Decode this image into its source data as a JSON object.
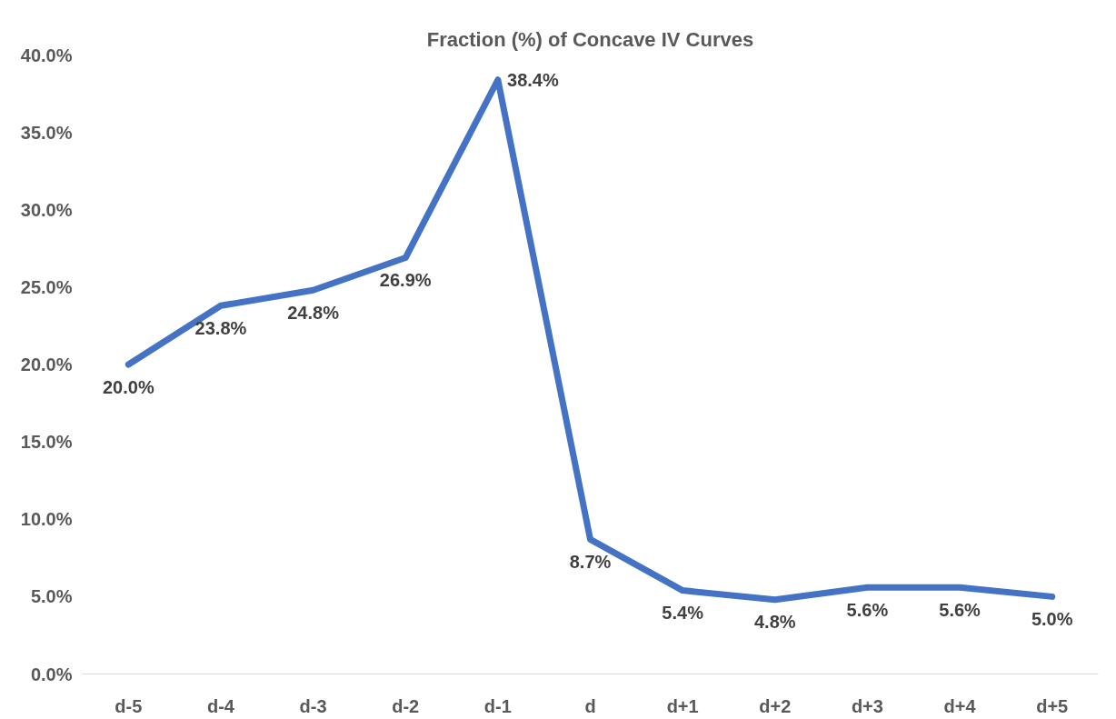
{
  "chart_data": {
    "type": "line",
    "title": "Fraction (%) of Concave IV Curves",
    "categories": [
      "d-5",
      "d-4",
      "d-3",
      "d-2",
      "d-1",
      "d",
      "d+1",
      "d+2",
      "d+3",
      "d+4",
      "d+5"
    ],
    "series": [
      {
        "color": "#4472c4",
        "values": [
          20.0,
          23.8,
          24.8,
          26.9,
          38.4,
          8.7,
          5.4,
          4.8,
          5.6,
          5.6,
          5.0
        ],
        "value_labels": [
          "20.0%",
          "23.8%",
          "24.8%",
          "26.9%",
          "38.4%",
          "8.7%",
          "5.4%",
          "4.8%",
          "5.6%",
          "5.6%",
          "5.0%"
        ]
      }
    ],
    "ylim": [
      0,
      40
    ],
    "yticks": [
      {
        "value": 0,
        "label": "0.0%"
      },
      {
        "value": 5,
        "label": "5.0%"
      },
      {
        "value": 10,
        "label": "10.0%"
      },
      {
        "value": 15,
        "label": "15.0%"
      },
      {
        "value": 20,
        "label": "20.0%"
      },
      {
        "value": 25,
        "label": "25.0%"
      },
      {
        "value": 30,
        "label": "30.0%"
      },
      {
        "value": 35,
        "label": "35.0%"
      },
      {
        "value": 40,
        "label": "40.0%"
      }
    ],
    "grid": false,
    "marker": "none",
    "line_style": "solid"
  }
}
